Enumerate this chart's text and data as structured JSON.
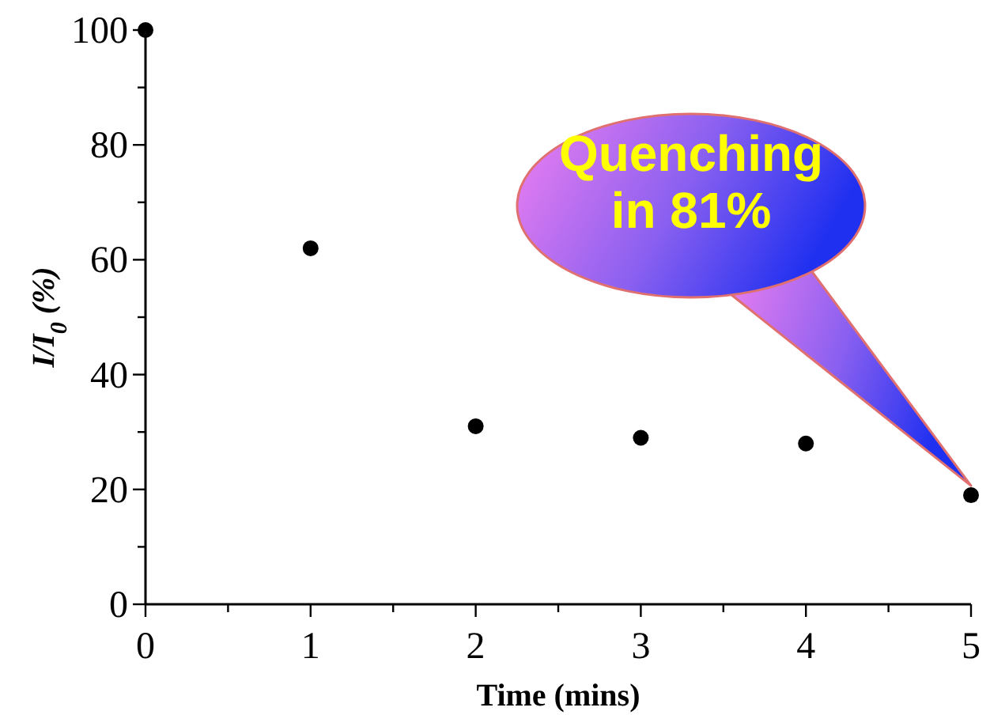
{
  "chart_data": {
    "type": "scatter",
    "xlabel": "Time (mins)",
    "ylabel": "I/I$_{0}$ (%)",
    "x": [
      0,
      1,
      2,
      3,
      4,
      5
    ],
    "values": [
      100,
      62,
      31,
      29,
      28,
      19
    ],
    "color": "#000000",
    "marker": "circle",
    "xlim": [
      0,
      5
    ],
    "xticks": [
      0,
      {
        "value": 0.5,
        "label": null
      },
      1,
      {
        "value": 1.5,
        "label": null
      },
      2,
      {
        "value": 2.5,
        "label": null
      },
      3,
      {
        "value": 3.5,
        "label": null
      },
      4,
      {
        "value": 4.5,
        "label": null
      },
      5
    ],
    "ylim": [
      0,
      100
    ],
    "yticks": [
      0,
      {
        "value": 10,
        "label": null
      },
      20,
      {
        "value": 30,
        "label": null
      },
      40,
      {
        "value": 50,
        "label": null
      },
      60,
      {
        "value": 70,
        "label": null
      },
      80,
      {
        "value": 90,
        "label": null
      },
      100
    ],
    "annotations": [
      "Quenching\nin 81%"
    ]
  }
}
